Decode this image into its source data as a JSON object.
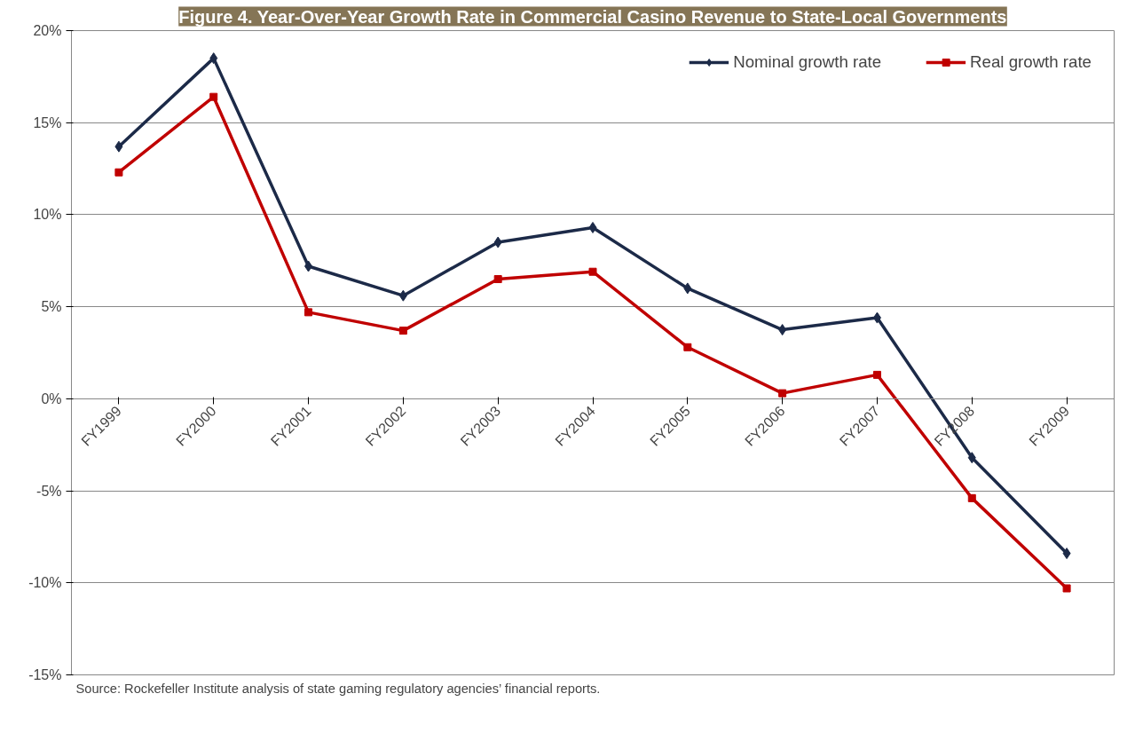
{
  "chart_data": {
    "type": "line",
    "title": "Figure 4. Year-Over-Year Growth Rate in Commercial Casino Revenue to State-Local Governments",
    "categories": [
      "FY1999",
      "FY2000",
      "FY2001",
      "FY2002",
      "FY2003",
      "FY2004",
      "FY2005",
      "FY2006",
      "FY2007",
      "FY2008",
      "FY2009"
    ],
    "series": [
      {
        "name": "Nominal growth rate",
        "color": "#1c2a48",
        "marker": "diamond",
        "values": [
          13.7,
          18.5,
          7.2,
          5.6,
          8.5,
          9.3,
          6.0,
          3.75,
          4.4,
          -3.2,
          -8.4
        ]
      },
      {
        "name": "Real growth rate",
        "color": "#c00000",
        "marker": "square",
        "values": [
          12.3,
          16.4,
          4.7,
          3.7,
          6.5,
          6.9,
          2.8,
          0.3,
          1.3,
          -5.4,
          -10.3
        ]
      }
    ],
    "ylim": [
      -15,
      20
    ],
    "yticks": [
      {
        "value": -15,
        "label": "-15%"
      },
      {
        "value": -10,
        "label": "-10%"
      },
      {
        "value": -5,
        "label": "-5%"
      },
      {
        "value": 0,
        "label": "0%"
      },
      {
        "value": 5,
        "label": "5%"
      },
      {
        "value": 10,
        "label": "10%"
      },
      {
        "value": 15,
        "label": "15%"
      },
      {
        "value": 20,
        "label": "20%"
      }
    ],
    "grid": "y",
    "legend": "top right",
    "line_style": "solid",
    "annotations": [
      "Source: Rockefeller Institute analysis of state gaming regulatory agencies’ financial reports."
    ]
  }
}
